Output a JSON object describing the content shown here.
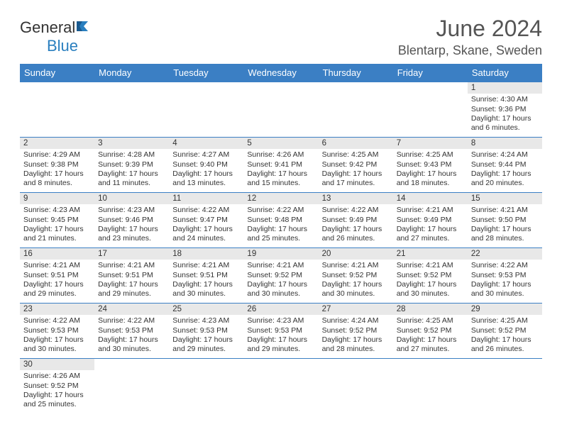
{
  "brand": {
    "part1": "General",
    "part2": "Blue"
  },
  "title": "June 2024",
  "location": "Blentarp, Skane, Sweden",
  "colors": {
    "header_bg": "#3b7fc4",
    "header_text": "#ffffff",
    "daynum_bg": "#e8e8e8",
    "divider": "#3b7fc4",
    "title_color": "#555555",
    "logo_blue": "#2a7fbf",
    "logo_dark": "#333333"
  },
  "typography": {
    "title_fontsize": 32,
    "location_fontsize": 18,
    "header_fontsize": 13,
    "cell_fontsize": 10.5
  },
  "weekdays": [
    "Sunday",
    "Monday",
    "Tuesday",
    "Wednesday",
    "Thursday",
    "Friday",
    "Saturday"
  ],
  "weeks": [
    [
      null,
      null,
      null,
      null,
      null,
      null,
      {
        "n": "1",
        "sr": "4:30 AM",
        "ss": "9:36 PM",
        "dl": "17 hours and 6 minutes."
      }
    ],
    [
      {
        "n": "2",
        "sr": "4:29 AM",
        "ss": "9:38 PM",
        "dl": "17 hours and 8 minutes."
      },
      {
        "n": "3",
        "sr": "4:28 AM",
        "ss": "9:39 PM",
        "dl": "17 hours and 11 minutes."
      },
      {
        "n": "4",
        "sr": "4:27 AM",
        "ss": "9:40 PM",
        "dl": "17 hours and 13 minutes."
      },
      {
        "n": "5",
        "sr": "4:26 AM",
        "ss": "9:41 PM",
        "dl": "17 hours and 15 minutes."
      },
      {
        "n": "6",
        "sr": "4:25 AM",
        "ss": "9:42 PM",
        "dl": "17 hours and 17 minutes."
      },
      {
        "n": "7",
        "sr": "4:25 AM",
        "ss": "9:43 PM",
        "dl": "17 hours and 18 minutes."
      },
      {
        "n": "8",
        "sr": "4:24 AM",
        "ss": "9:44 PM",
        "dl": "17 hours and 20 minutes."
      }
    ],
    [
      {
        "n": "9",
        "sr": "4:23 AM",
        "ss": "9:45 PM",
        "dl": "17 hours and 21 minutes."
      },
      {
        "n": "10",
        "sr": "4:23 AM",
        "ss": "9:46 PM",
        "dl": "17 hours and 23 minutes."
      },
      {
        "n": "11",
        "sr": "4:22 AM",
        "ss": "9:47 PM",
        "dl": "17 hours and 24 minutes."
      },
      {
        "n": "12",
        "sr": "4:22 AM",
        "ss": "9:48 PM",
        "dl": "17 hours and 25 minutes."
      },
      {
        "n": "13",
        "sr": "4:22 AM",
        "ss": "9:49 PM",
        "dl": "17 hours and 26 minutes."
      },
      {
        "n": "14",
        "sr": "4:21 AM",
        "ss": "9:49 PM",
        "dl": "17 hours and 27 minutes."
      },
      {
        "n": "15",
        "sr": "4:21 AM",
        "ss": "9:50 PM",
        "dl": "17 hours and 28 minutes."
      }
    ],
    [
      {
        "n": "16",
        "sr": "4:21 AM",
        "ss": "9:51 PM",
        "dl": "17 hours and 29 minutes."
      },
      {
        "n": "17",
        "sr": "4:21 AM",
        "ss": "9:51 PM",
        "dl": "17 hours and 29 minutes."
      },
      {
        "n": "18",
        "sr": "4:21 AM",
        "ss": "9:51 PM",
        "dl": "17 hours and 30 minutes."
      },
      {
        "n": "19",
        "sr": "4:21 AM",
        "ss": "9:52 PM",
        "dl": "17 hours and 30 minutes."
      },
      {
        "n": "20",
        "sr": "4:21 AM",
        "ss": "9:52 PM",
        "dl": "17 hours and 30 minutes."
      },
      {
        "n": "21",
        "sr": "4:21 AM",
        "ss": "9:52 PM",
        "dl": "17 hours and 30 minutes."
      },
      {
        "n": "22",
        "sr": "4:22 AM",
        "ss": "9:53 PM",
        "dl": "17 hours and 30 minutes."
      }
    ],
    [
      {
        "n": "23",
        "sr": "4:22 AM",
        "ss": "9:53 PM",
        "dl": "17 hours and 30 minutes."
      },
      {
        "n": "24",
        "sr": "4:22 AM",
        "ss": "9:53 PM",
        "dl": "17 hours and 30 minutes."
      },
      {
        "n": "25",
        "sr": "4:23 AM",
        "ss": "9:53 PM",
        "dl": "17 hours and 29 minutes."
      },
      {
        "n": "26",
        "sr": "4:23 AM",
        "ss": "9:53 PM",
        "dl": "17 hours and 29 minutes."
      },
      {
        "n": "27",
        "sr": "4:24 AM",
        "ss": "9:52 PM",
        "dl": "17 hours and 28 minutes."
      },
      {
        "n": "28",
        "sr": "4:25 AM",
        "ss": "9:52 PM",
        "dl": "17 hours and 27 minutes."
      },
      {
        "n": "29",
        "sr": "4:25 AM",
        "ss": "9:52 PM",
        "dl": "17 hours and 26 minutes."
      }
    ],
    [
      {
        "n": "30",
        "sr": "4:26 AM",
        "ss": "9:52 PM",
        "dl": "17 hours and 25 minutes."
      },
      null,
      null,
      null,
      null,
      null,
      null
    ]
  ],
  "labels": {
    "sunrise": "Sunrise: ",
    "sunset": "Sunset: ",
    "daylight": "Daylight: "
  }
}
